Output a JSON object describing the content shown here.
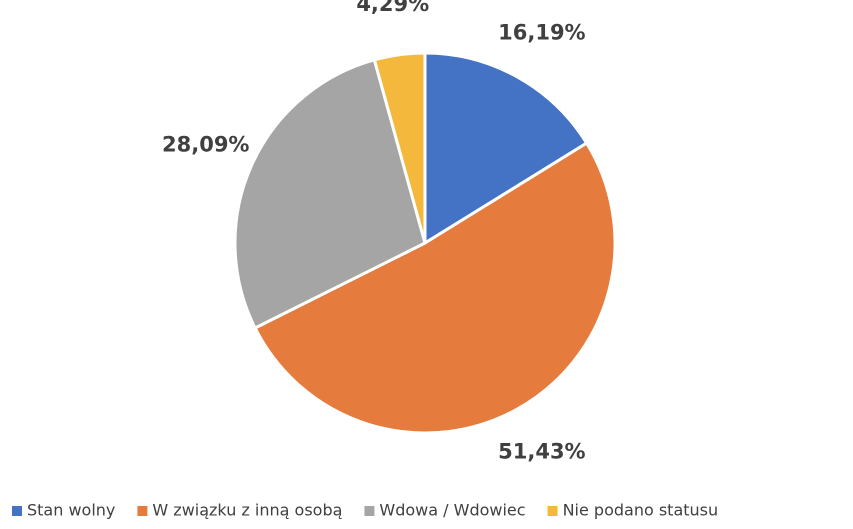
{
  "chart_data": {
    "type": "pie",
    "categories": [
      "Stan wolny",
      "W związku z inną osobą",
      "Wdowa / Wdowiec",
      "Nie podano statusu"
    ],
    "values": [
      16.19,
      51.43,
      28.09,
      4.29
    ],
    "value_labels": [
      "16,19%",
      "51,43%",
      "28,09%",
      "4,29%"
    ],
    "colors": [
      "#4472c4",
      "#e57c3e",
      "#a5a5a5",
      "#f4b93c"
    ],
    "legend": "bottom"
  }
}
